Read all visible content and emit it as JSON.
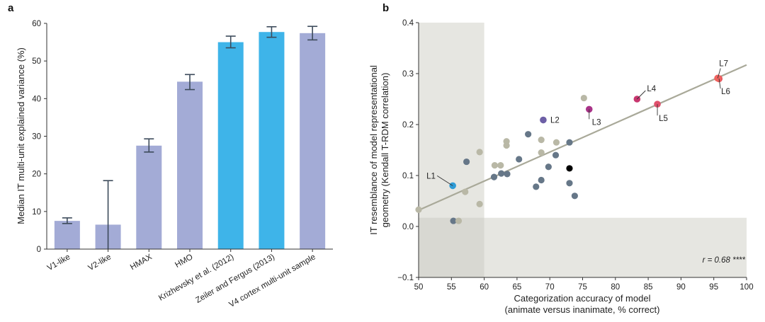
{
  "colors": {
    "bar_lavender": "#a3abd6",
    "bar_blue": "#3eb4e9",
    "errorbar": "#3c4a5a",
    "shade": "#e6e6e1",
    "fit_line": "#a9a999",
    "dot_slate": "#667788",
    "dot_beige": "#b9b8a6"
  },
  "chart_data": [
    {
      "panel": "a",
      "type": "bar",
      "ylabel": "Median IT multi-unit explained variance (%)",
      "ylim": [
        0,
        60
      ],
      "yticks": [
        0,
        10,
        20,
        30,
        40,
        50,
        60
      ],
      "categories": [
        "V1-like",
        "V2-like",
        "HMAX",
        "HMO",
        "Krizhevsky et al. (2012)",
        "Zeiler and Fergus (2013)",
        "V4 cortex multi-unit sample"
      ],
      "values": [
        7.5,
        6.5,
        27.5,
        44.5,
        55.0,
        57.7,
        57.4
      ],
      "error_low": [
        6.8,
        0,
        25.8,
        42.4,
        53.5,
        56.3,
        55.6
      ],
      "error_high": [
        8.3,
        18.2,
        29.3,
        46.4,
        56.6,
        59.1,
        59.2
      ],
      "bar_color_keys": [
        "bar_lavender",
        "bar_lavender",
        "bar_lavender",
        "bar_lavender",
        "bar_blue",
        "bar_blue",
        "bar_lavender"
      ]
    },
    {
      "panel": "b",
      "type": "scatter",
      "xlabel_line1": "Categorization accuracy of model",
      "xlabel_line2": "(animate versus inanimate, % correct)",
      "ylabel_line1": "IT resemblance of model representational",
      "ylabel_line2": "geometry (Kendall T-RDM correlation)",
      "xlim": [
        50,
        100
      ],
      "ylim": [
        -0.1,
        0.4
      ],
      "xticks": [
        50,
        55,
        60,
        65,
        70,
        75,
        80,
        85,
        90,
        95,
        100
      ],
      "yticks": [
        -0.1,
        0.0,
        0.1,
        0.2,
        0.3,
        0.4
      ],
      "ytick_labels": [
        "−0.1",
        "0.0",
        "0.1",
        "0.2",
        "0.3",
        "0.4"
      ],
      "shaded_chance_region": {
        "x_max": 60,
        "y_max": 0.017
      },
      "fit_line": {
        "x": [
          50,
          100
        ],
        "y": [
          0.032,
          0.317
        ]
      },
      "annotation": "r = 0.68 ****",
      "points": [
        {
          "x": 50.0,
          "y": 0.033,
          "color": "beige"
        },
        {
          "x": 55.3,
          "y": 0.011,
          "color": "slate"
        },
        {
          "x": 56.1,
          "y": 0.011,
          "color": "beige"
        },
        {
          "x": 57.1,
          "y": 0.068,
          "color": "beige"
        },
        {
          "x": 57.3,
          "y": 0.127,
          "color": "slate"
        },
        {
          "x": 59.3,
          "y": 0.146,
          "color": "beige"
        },
        {
          "x": 59.3,
          "y": 0.044,
          "color": "beige"
        },
        {
          "x": 61.5,
          "y": 0.097,
          "color": "slate"
        },
        {
          "x": 61.6,
          "y": 0.12,
          "color": "beige"
        },
        {
          "x": 62.5,
          "y": 0.12,
          "color": "beige"
        },
        {
          "x": 62.6,
          "y": 0.104,
          "color": "slate"
        },
        {
          "x": 63.5,
          "y": 0.103,
          "color": "slate"
        },
        {
          "x": 63.4,
          "y": 0.167,
          "color": "beige"
        },
        {
          "x": 63.4,
          "y": 0.159,
          "color": "beige"
        },
        {
          "x": 65.3,
          "y": 0.132,
          "color": "slate"
        },
        {
          "x": 66.7,
          "y": 0.181,
          "color": "slate"
        },
        {
          "x": 67.9,
          "y": 0.078,
          "color": "slate"
        },
        {
          "x": 68.7,
          "y": 0.17,
          "color": "beige"
        },
        {
          "x": 68.7,
          "y": 0.145,
          "color": "beige"
        },
        {
          "x": 68.7,
          "y": 0.091,
          "color": "slate"
        },
        {
          "x": 69.8,
          "y": 0.117,
          "color": "slate"
        },
        {
          "x": 70.9,
          "y": 0.14,
          "color": "slate"
        },
        {
          "x": 71.0,
          "y": 0.165,
          "color": "beige"
        },
        {
          "x": 73.0,
          "y": 0.114,
          "color": "black"
        },
        {
          "x": 73.0,
          "y": 0.085,
          "color": "slate"
        },
        {
          "x": 73.0,
          "y": 0.165,
          "color": "slate"
        },
        {
          "x": 73.8,
          "y": 0.06,
          "color": "slate"
        },
        {
          "x": 75.2,
          "y": 0.252,
          "color": "beige"
        },
        {
          "x": 55.2,
          "y": 0.08,
          "color": "#2e9bd6",
          "label": "L1"
        },
        {
          "x": 69.0,
          "y": 0.209,
          "color": "#6d5fa6",
          "label": "L2"
        },
        {
          "x": 76.0,
          "y": 0.23,
          "color": "#a93388",
          "label": "L3"
        },
        {
          "x": 83.3,
          "y": 0.25,
          "color": "#c8366e",
          "label": "L4"
        },
        {
          "x": 86.4,
          "y": 0.24,
          "color": "#e0506c",
          "label": "L5"
        },
        {
          "x": 95.8,
          "y": 0.29,
          "color": "#e4585e",
          "label": "L6"
        },
        {
          "x": 95.6,
          "y": 0.291,
          "color": "#f0635f",
          "label": "L7"
        }
      ]
    }
  ]
}
